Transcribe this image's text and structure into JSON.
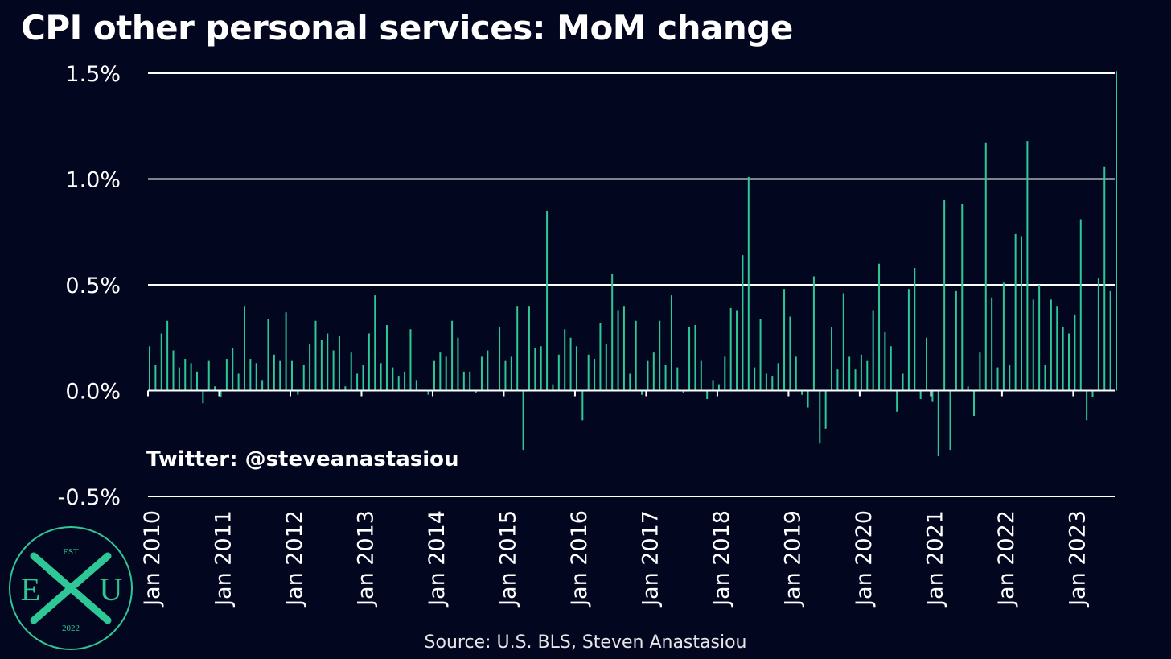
{
  "header": {
    "title": "CPI other personal services: MoM change"
  },
  "watermark": "Twitter: @steveanastasiou",
  "source": "Source: U.S. BLS, Steven Anastasiou",
  "logo": {
    "top": "EST",
    "left": "E",
    "right": "U",
    "bottom": "2022",
    "center": "X"
  },
  "colors": {
    "background": "#03061f",
    "bars": "#2ec896",
    "grid": "#ffffff",
    "text": "#ffffff"
  },
  "chart_data": {
    "type": "bar",
    "title": "CPI other personal services: MoM change",
    "xlabel": "",
    "ylabel": "",
    "ylim": [
      -0.5,
      1.5
    ],
    "y_ticks": [
      1.5,
      1.0,
      0.5,
      0.0,
      -0.5
    ],
    "y_tick_labels": [
      "1.5%",
      "1.0%",
      "0.5%",
      "0.0%",
      "-0.5%"
    ],
    "x_tick_labels": [
      "Jan 2010",
      "Jan 2011",
      "Jan 2012",
      "Jan 2013",
      "Jan 2014",
      "Jan 2015",
      "Jan 2016",
      "Jan 2017",
      "Jan 2018",
      "Jan 2019",
      "Jan 2020",
      "Jan 2021",
      "Jan 2022",
      "Jan 2023"
    ],
    "start": "Jan 2010",
    "frequency": "monthly",
    "grid": true,
    "series": [
      {
        "values": [
          0.21,
          0.12,
          0.27,
          0.33,
          0.19,
          0.11,
          0.15,
          0.13,
          0.09,
          -0.06,
          0.14,
          0.02,
          -0.03,
          0.15,
          0.2,
          0.08,
          0.4,
          0.15,
          0.13,
          0.05,
          0.34,
          0.17,
          0.14,
          0.37,
          0.14,
          -0.02,
          0.12,
          0.22,
          0.33,
          0.24,
          0.27,
          0.19,
          0.26,
          0.02,
          0.18,
          0.08,
          0.12,
          0.27,
          0.45,
          0.13,
          0.31,
          0.11,
          0.07,
          0.09,
          0.29,
          0.05,
          0.0,
          -0.02,
          0.14,
          0.18,
          0.16,
          0.33,
          0.25,
          0.09,
          0.09,
          -0.01,
          0.16,
          0.19,
          0.0,
          0.3,
          0.14,
          0.16,
          0.4,
          -0.28,
          0.4,
          0.2,
          0.21,
          0.85,
          0.03,
          0.17,
          0.29,
          0.25,
          0.21,
          -0.14,
          0.17,
          0.15,
          0.32,
          0.22,
          0.55,
          0.38,
          0.4,
          0.08,
          0.33,
          -0.02,
          0.14,
          0.18,
          0.33,
          0.12,
          0.45,
          0.11,
          -0.01,
          0.3,
          0.31,
          0.14,
          -0.04,
          0.05,
          0.03,
          0.16,
          0.39,
          0.38,
          0.64,
          1.01,
          0.11,
          0.34,
          0.08,
          0.07,
          0.13,
          0.48,
          0.35,
          0.16,
          -0.02,
          -0.08,
          0.54,
          -0.25,
          -0.18,
          0.3,
          0.1,
          0.46,
          0.16,
          0.1,
          0.17,
          0.14,
          0.38,
          0.6,
          0.28,
          0.21,
          -0.1,
          0.08,
          0.48,
          0.58,
          -0.04,
          0.25,
          -0.05,
          -0.31,
          0.9,
          -0.28,
          0.47,
          0.88,
          0.02,
          -0.12,
          0.18,
          1.17,
          0.44,
          0.11,
          0.51,
          0.12,
          0.74,
          0.73,
          1.18,
          0.43,
          0.5,
          0.12,
          0.43,
          0.4,
          0.3,
          0.27,
          0.36,
          0.81,
          -0.14,
          -0.03,
          0.53,
          1.06,
          0.47,
          1.51
        ]
      }
    ]
  }
}
